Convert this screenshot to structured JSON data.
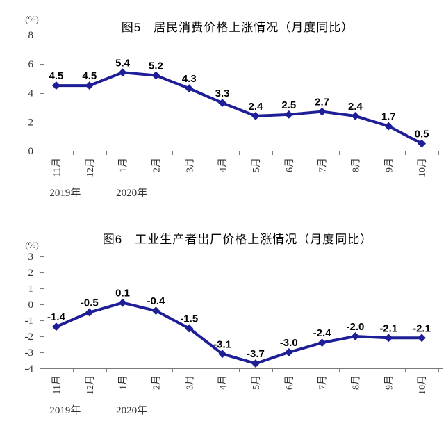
{
  "page": {
    "background": "#ffffff"
  },
  "chart_data": [
    {
      "type": "line",
      "title": "图5　居民消费价格上涨情况（月度同比）",
      "unit_label": "(%)",
      "xlabel": "",
      "ylabel": "(%)",
      "categories": [
        "11月",
        "12月",
        "1月",
        "2月",
        "3月",
        "4月",
        "5月",
        "6月",
        "7月",
        "8月",
        "9月",
        "10月"
      ],
      "values": [
        4.5,
        4.5,
        5.4,
        5.2,
        4.3,
        3.3,
        2.4,
        2.5,
        2.7,
        2.4,
        1.7,
        0.5
      ],
      "ylim": [
        0,
        8
      ],
      "ytick_step": 2,
      "ytick_labels": [
        "8",
        "6",
        "4",
        "2",
        "0"
      ],
      "year_labels": [
        {
          "text": "2019年",
          "category_index": 0
        },
        {
          "text": "2020年",
          "category_index": 2
        }
      ],
      "grid": "off",
      "legend": "none",
      "line_color": "#1E1E96",
      "marker": "diamond",
      "label_color": "#000000",
      "axis_color": "#7a7a7a",
      "tick_label_color": "#333333"
    },
    {
      "type": "line",
      "title": "图6　工业生产者出厂价格上涨情况（月度同比）",
      "unit_label": "(%)",
      "xlabel": "",
      "ylabel": "(%)",
      "categories": [
        "11月",
        "12月",
        "1月",
        "2月",
        "3月",
        "4月",
        "5月",
        "6月",
        "7月",
        "8月",
        "9月",
        "10月"
      ],
      "values": [
        -1.4,
        -0.5,
        0.1,
        -0.4,
        -1.5,
        -3.1,
        -3.7,
        -3.0,
        -2.4,
        -2.0,
        -2.1,
        -2.1
      ],
      "ylim": [
        -4,
        3
      ],
      "ytick_step": 1,
      "ytick_labels": [
        "3",
        "2",
        "1",
        "0",
        "-1",
        "-2",
        "-3",
        "-4"
      ],
      "year_labels": [
        {
          "text": "2019年",
          "category_index": 0
        },
        {
          "text": "2020年",
          "category_index": 2
        }
      ],
      "grid": "off",
      "legend": "none",
      "line_color": "#1E1E96",
      "marker": "diamond",
      "label_color": "#000000",
      "axis_color": "#7a7a7a",
      "tick_label_color": "#333333"
    }
  ]
}
